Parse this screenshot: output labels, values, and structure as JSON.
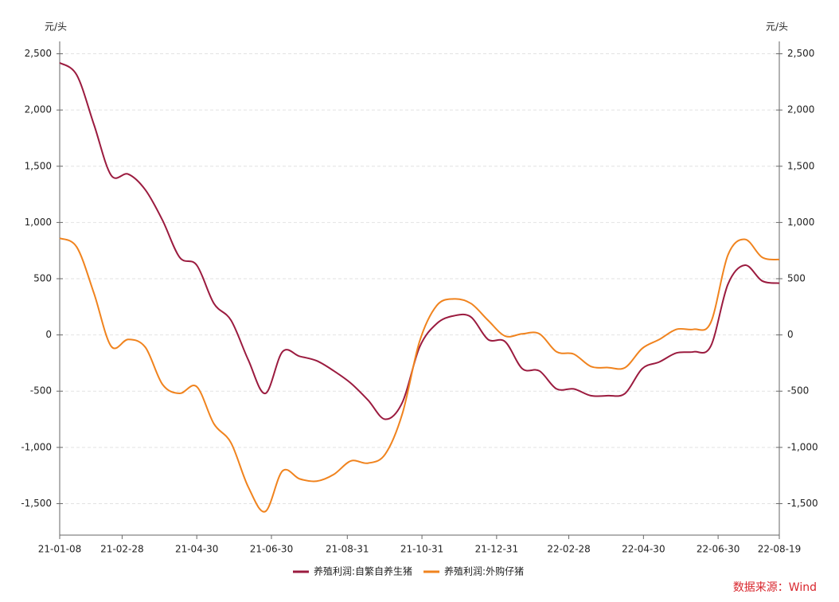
{
  "chart_data": {
    "type": "line",
    "y_label": "元/头",
    "y2_label": "元/头",
    "source": "数据来源：Wind",
    "x": [
      "21-01-08",
      "21-01-22",
      "21-02-05",
      "21-02-19",
      "21-03-05",
      "21-03-19",
      "21-04-02",
      "21-04-16",
      "21-04-30",
      "21-05-14",
      "21-05-28",
      "21-06-11",
      "21-06-25",
      "21-07-09",
      "21-07-23",
      "21-08-06",
      "21-08-20",
      "21-09-03",
      "21-09-17",
      "21-10-01",
      "21-10-15",
      "21-10-29",
      "21-11-12",
      "21-11-26",
      "21-12-10",
      "21-12-24",
      "22-01-07",
      "22-01-21",
      "22-02-04",
      "22-02-18",
      "22-03-04",
      "22-03-18",
      "22-04-01",
      "22-04-15",
      "22-04-29",
      "22-05-13",
      "22-05-27",
      "22-06-10",
      "22-06-24",
      "22-07-08",
      "22-07-22",
      "22-08-05",
      "22-08-19"
    ],
    "xticks": [
      "21-01-08",
      "21-02-28",
      "21-04-30",
      "21-06-30",
      "21-08-31",
      "21-10-31",
      "21-12-31",
      "22-02-28",
      "22-04-30",
      "22-06-30",
      "22-08-19"
    ],
    "series": [
      {
        "name": "养殖利润:自繁自养生猪",
        "color": "#9b1b3f",
        "values": [
          2420,
          2310,
          1870,
          1420,
          1430,
          1290,
          1020,
          690,
          620,
          280,
          130,
          -220,
          -520,
          -150,
          -190,
          -230,
          -320,
          -430,
          -580,
          -750,
          -600,
          -110,
          100,
          170,
          160,
          -40,
          -60,
          -300,
          -320,
          -480,
          -480,
          -540,
          -540,
          -520,
          -300,
          -240,
          -160,
          -150,
          -100,
          450,
          620,
          480,
          460
        ]
      },
      {
        "name": "养殖利润:外购仔猪",
        "color": "#f0831e",
        "values": [
          860,
          780,
          370,
          -100,
          -40,
          -110,
          -440,
          -520,
          -460,
          -790,
          -960,
          -1350,
          -1570,
          -1210,
          -1280,
          -1300,
          -1240,
          -1120,
          -1140,
          -1060,
          -700,
          -60,
          260,
          320,
          280,
          130,
          -10,
          10,
          10,
          -150,
          -170,
          -280,
          -290,
          -290,
          -120,
          -40,
          50,
          50,
          110,
          710,
          850,
          690,
          670
        ]
      }
    ],
    "ylim": [
      -1780,
      2610
    ],
    "yticks": [
      {
        "value": -1500,
        "label": "-1,500"
      },
      {
        "value": -1000,
        "label": "-1,000"
      },
      -500,
      0,
      500,
      {
        "value": 1000,
        "label": "1,000"
      },
      {
        "value": 1500,
        "label": "1,500"
      },
      {
        "value": 2000,
        "label": "2,000"
      },
      {
        "value": 2500,
        "label": "2,500"
      }
    ],
    "y2lim": [
      -1780,
      2610
    ],
    "y2ticks": [
      {
        "value": -1500,
        "label": "-1,500"
      },
      {
        "value": -1000,
        "label": "-1,000"
      },
      -500,
      0,
      500,
      {
        "value": 1000,
        "label": "1,000"
      },
      {
        "value": 1500,
        "label": "1,500"
      },
      {
        "value": 2000,
        "label": "2,000"
      },
      {
        "value": 2500,
        "label": "2,500"
      }
    ],
    "grid": true
  }
}
